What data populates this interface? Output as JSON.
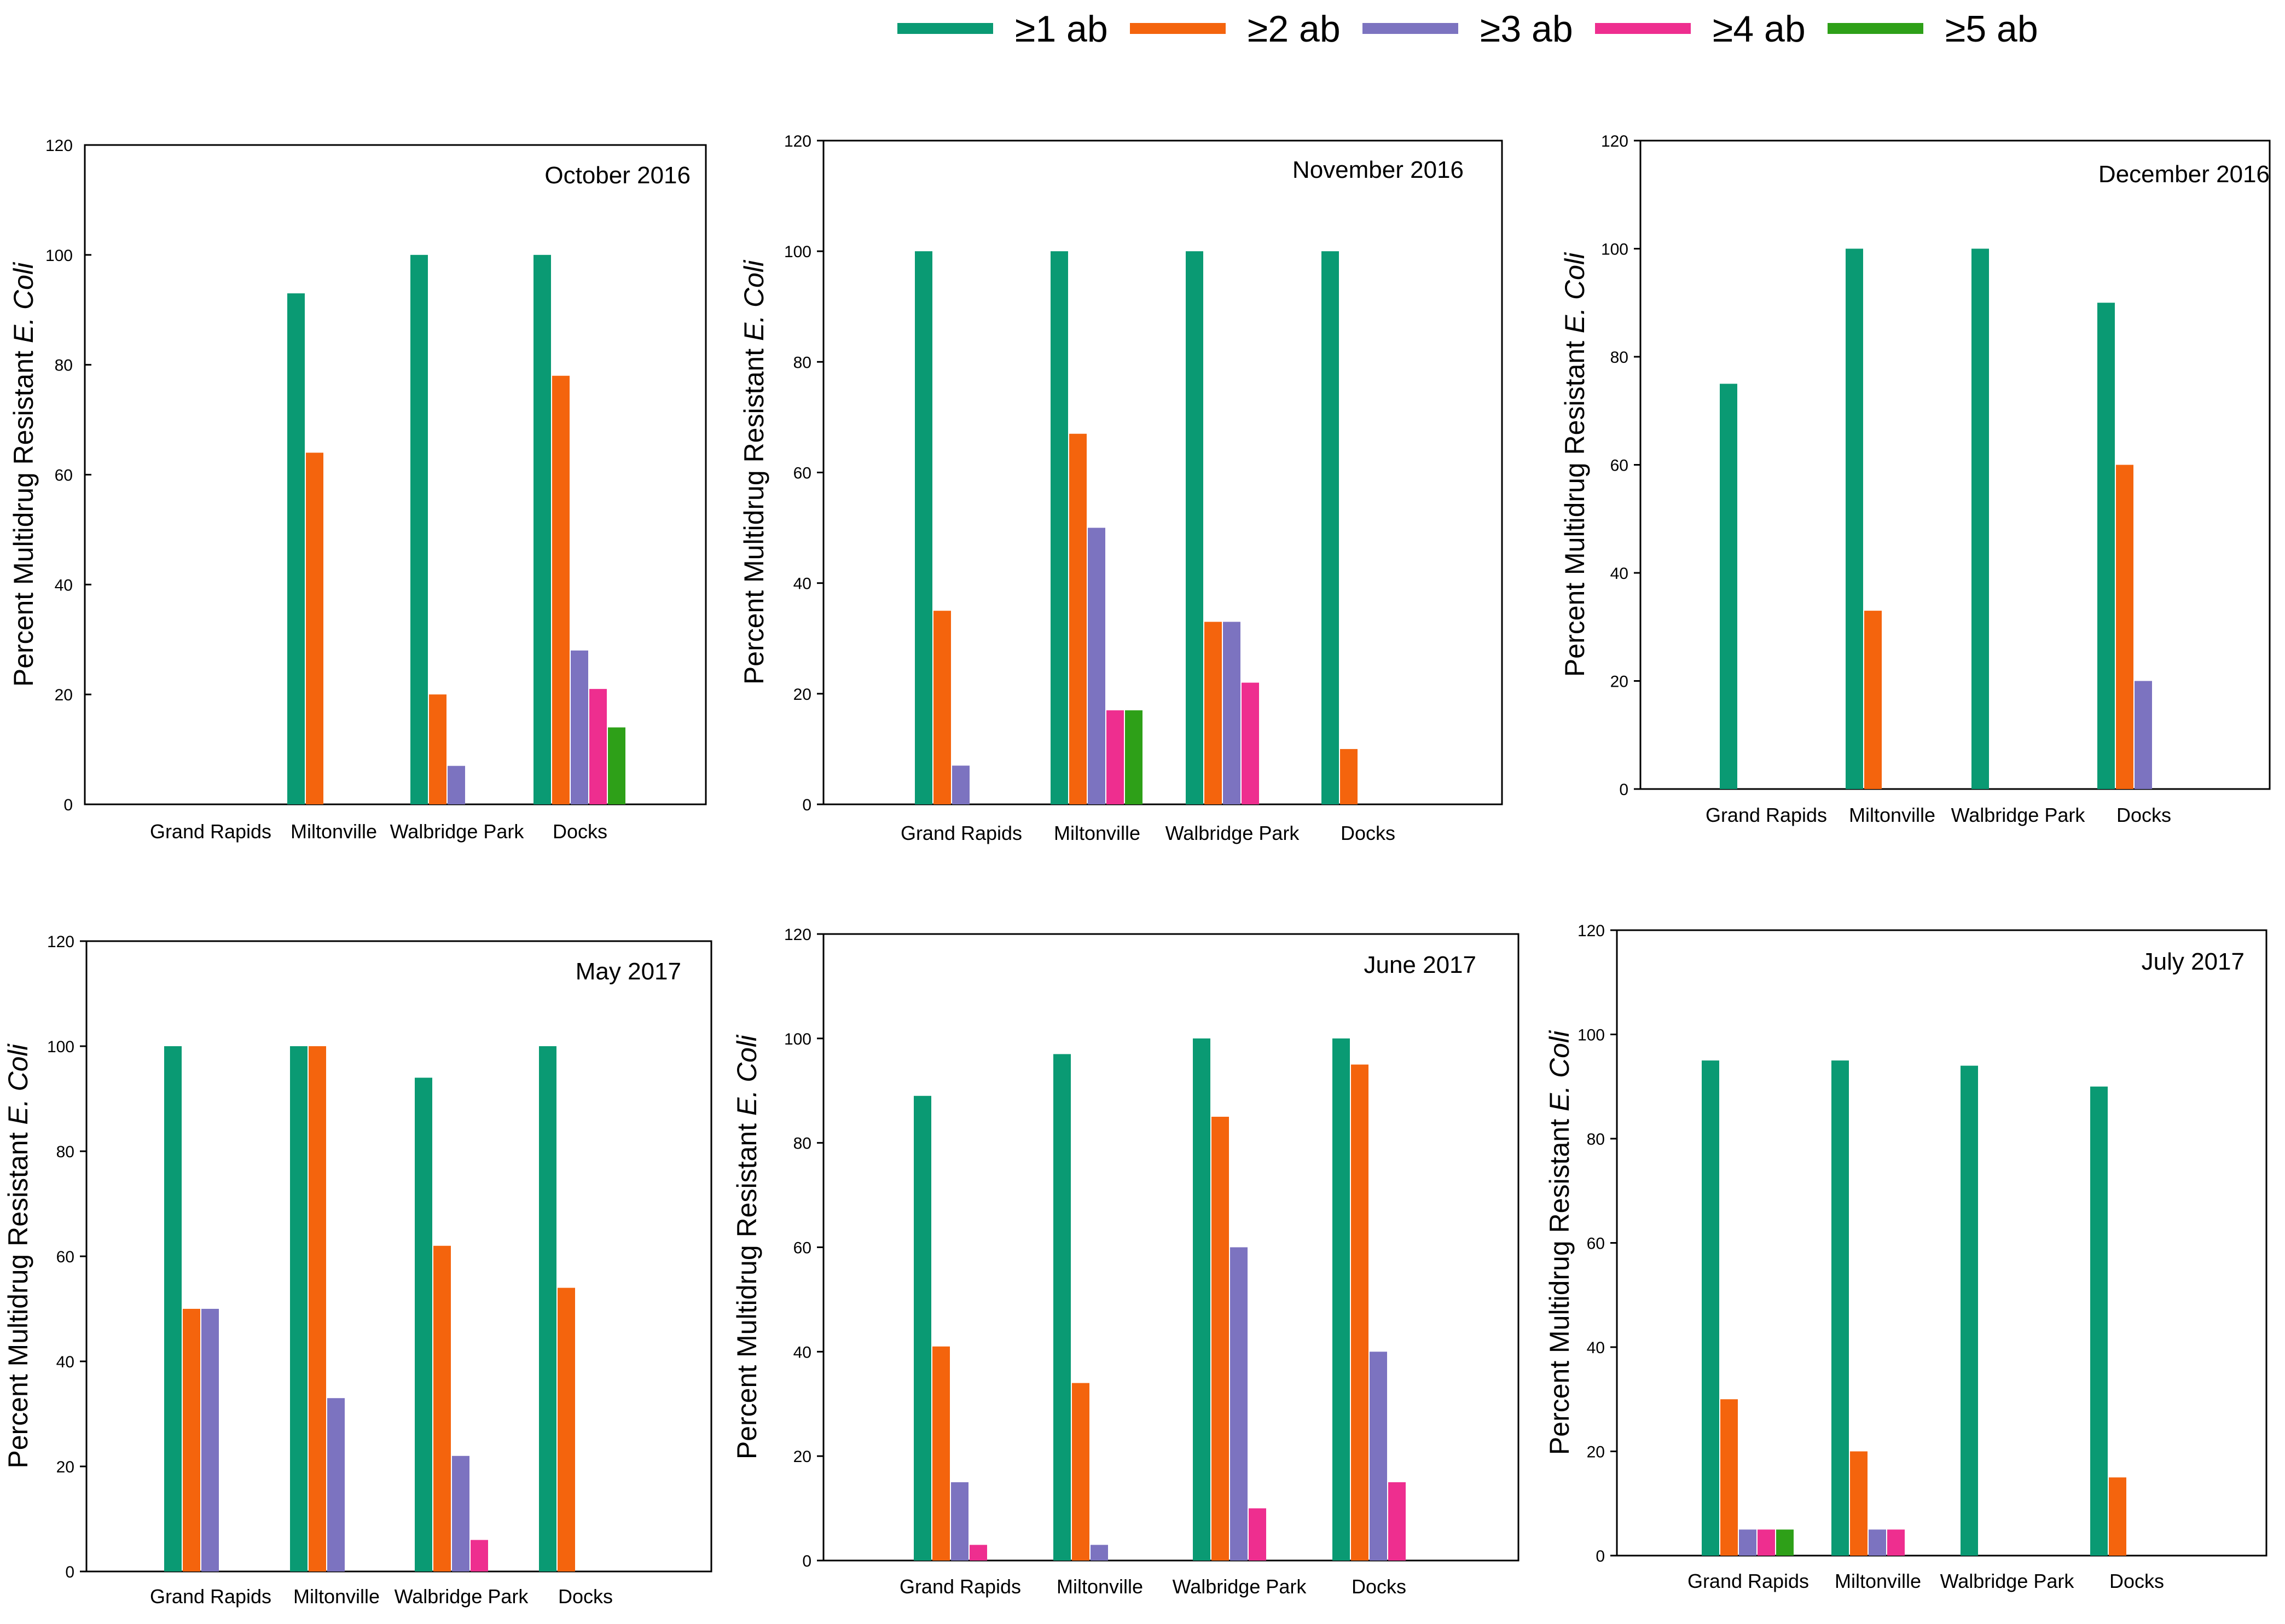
{
  "legend": [
    {
      "label": "≥1 ab",
      "color": "#0a9a73"
    },
    {
      "label": "≥2 ab",
      "color": "#f4640d"
    },
    {
      "label": "≥3 ab",
      "color": "#7c73c0"
    },
    {
      "label": "≥4 ab",
      "color": "#ee2e8f"
    },
    {
      "label": "≥5 ab",
      "color": "#2ea018"
    }
  ],
  "y_axis_label": {
    "prefix": "Percent Multidrug Resistant ",
    "italic": "E. Coli"
  },
  "chart_data": [
    {
      "type": "bar",
      "title": "October 2016",
      "categories": [
        "Grand Rapids",
        "Miltonville",
        "Walbridge Park",
        "Docks"
      ],
      "ylim": [
        0,
        120
      ],
      "yticks": [
        0,
        20,
        40,
        60,
        80,
        100,
        120
      ],
      "ylabel": "Percent Multidrug Resistant E. Coli",
      "series": [
        {
          "name": "≥1 ab",
          "values": [
            0,
            93,
            100,
            100
          ]
        },
        {
          "name": "≥2 ab",
          "values": [
            0,
            64,
            20,
            78
          ]
        },
        {
          "name": "≥3 ab",
          "values": [
            0,
            0,
            7,
            28
          ]
        },
        {
          "name": "≥4 ab",
          "values": [
            0,
            0,
            0,
            21
          ]
        },
        {
          "name": "≥5 ab",
          "values": [
            0,
            0,
            0,
            14
          ]
        }
      ]
    },
    {
      "type": "bar",
      "title": "November 2016",
      "categories": [
        "Grand Rapids",
        "Miltonville",
        "Walbridge Park",
        "Docks"
      ],
      "ylim": [
        0,
        120
      ],
      "yticks": [
        0,
        20,
        40,
        60,
        80,
        100,
        120
      ],
      "ylabel": "Percent Multidrug Resistant E. Coli",
      "series": [
        {
          "name": "≥1 ab",
          "values": [
            100,
            100,
            100,
            100
          ]
        },
        {
          "name": "≥2 ab",
          "values": [
            35,
            67,
            33,
            10
          ]
        },
        {
          "name": "≥3 ab",
          "values": [
            7,
            50,
            33,
            0
          ]
        },
        {
          "name": "≥4 ab",
          "values": [
            0,
            17,
            22,
            0
          ]
        },
        {
          "name": "≥5 ab",
          "values": [
            0,
            17,
            0,
            0
          ]
        }
      ]
    },
    {
      "type": "bar",
      "title": "December 2016",
      "categories": [
        "Grand Rapids",
        "Miltonville",
        "Walbridge Park",
        "Docks"
      ],
      "ylim": [
        0,
        120
      ],
      "yticks": [
        0,
        20,
        40,
        60,
        80,
        100,
        120
      ],
      "ylabel": "Percent Multidrug Resistant E. Coli",
      "series": [
        {
          "name": "≥1 ab",
          "values": [
            75,
            100,
            100,
            90
          ]
        },
        {
          "name": "≥2 ab",
          "values": [
            0,
            33,
            0,
            60
          ]
        },
        {
          "name": "≥3 ab",
          "values": [
            0,
            0,
            0,
            20
          ]
        },
        {
          "name": "≥4 ab",
          "values": [
            0,
            0,
            0,
            0
          ]
        },
        {
          "name": "≥5 ab",
          "values": [
            0,
            0,
            0,
            0
          ]
        }
      ]
    },
    {
      "type": "bar",
      "title": "May 2017",
      "categories": [
        "Grand Rapids",
        "Miltonville",
        "Walbridge Park",
        "Docks"
      ],
      "ylim": [
        0,
        120
      ],
      "yticks": [
        0,
        20,
        40,
        60,
        80,
        100,
        120
      ],
      "ylabel": "Percent Multidrug Resistant E. Coli",
      "series": [
        {
          "name": "≥1 ab",
          "values": [
            100,
            100,
            94,
            100
          ]
        },
        {
          "name": "≥2 ab",
          "values": [
            50,
            100,
            62,
            54
          ]
        },
        {
          "name": "≥3 ab",
          "values": [
            50,
            33,
            22,
            0
          ]
        },
        {
          "name": "≥4 ab",
          "values": [
            0,
            0,
            6,
            0
          ]
        },
        {
          "name": "≥5 ab",
          "values": [
            0,
            0,
            0,
            0
          ]
        }
      ]
    },
    {
      "type": "bar",
      "title": "June 2017",
      "categories": [
        "Grand Rapids",
        "Miltonville",
        "Walbridge Park",
        "Docks"
      ],
      "ylim": [
        0,
        120
      ],
      "yticks": [
        0,
        20,
        40,
        60,
        80,
        100,
        120
      ],
      "ylabel": "Percent Multidrug Resistant E. Coli",
      "series": [
        {
          "name": "≥1 ab",
          "values": [
            89,
            97,
            100,
            100
          ]
        },
        {
          "name": "≥2 ab",
          "values": [
            41,
            34,
            85,
            95
          ]
        },
        {
          "name": "≥3 ab",
          "values": [
            15,
            3,
            60,
            40
          ]
        },
        {
          "name": "≥4 ab",
          "values": [
            3,
            0,
            10,
            15
          ]
        },
        {
          "name": "≥5 ab",
          "values": [
            0,
            0,
            0,
            0
          ]
        }
      ]
    },
    {
      "type": "bar",
      "title": "July 2017",
      "categories": [
        "Grand Rapids",
        "Miltonville",
        "Walbridge Park",
        "Docks"
      ],
      "ylim": [
        0,
        120
      ],
      "yticks": [
        0,
        20,
        40,
        60,
        80,
        100,
        120
      ],
      "ylabel": "Percent Multidrug Resistant E. Coli",
      "series": [
        {
          "name": "≥1 ab",
          "values": [
            95,
            95,
            94,
            90
          ]
        },
        {
          "name": "≥2 ab",
          "values": [
            30,
            20,
            0,
            15
          ]
        },
        {
          "name": "≥3 ab",
          "values": [
            5,
            5,
            0,
            0
          ]
        },
        {
          "name": "≥4 ab",
          "values": [
            5,
            5,
            0,
            0
          ]
        },
        {
          "name": "≥5 ab",
          "values": [
            5,
            0,
            0,
            0
          ]
        }
      ]
    }
  ]
}
